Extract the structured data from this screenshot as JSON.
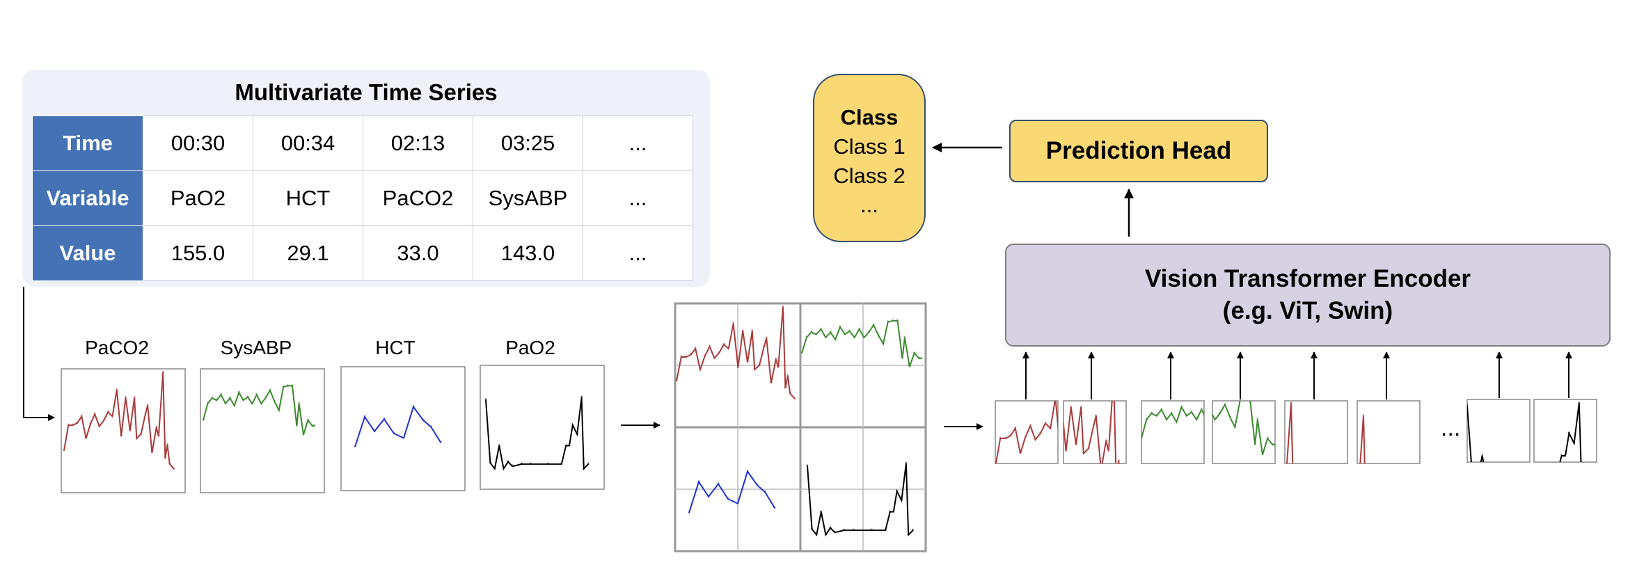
{
  "table": {
    "title": "Multivariate Time Series",
    "row_headers": [
      "Time",
      "Variable",
      "Value"
    ],
    "rows": [
      [
        "00:30",
        "00:34",
        "02:13",
        "03:25",
        "..."
      ],
      [
        "PaO2",
        "HCT",
        "PaCO2",
        "SysABP",
        "..."
      ],
      [
        "155.0",
        "29.1",
        "33.0",
        "143.0",
        "..."
      ]
    ]
  },
  "plots": {
    "titles": [
      "PaCO2",
      "SysABP",
      "HCT",
      "PaO2"
    ],
    "colors": {
      "PaCO2": "#a83b3b",
      "SysABP": "#3d8a2e",
      "HCT": "#1f2fd6",
      "PaO2": "#000000"
    }
  },
  "class_box": {
    "title": "Class",
    "items": [
      "Class 1",
      "Class 2",
      "..."
    ]
  },
  "prediction_head": "Prediction Head",
  "encoder": {
    "line1": "Vision Transformer Encoder",
    "line2": "(e.g. ViT, Swin)"
  },
  "patches_ellipsis": "..."
}
